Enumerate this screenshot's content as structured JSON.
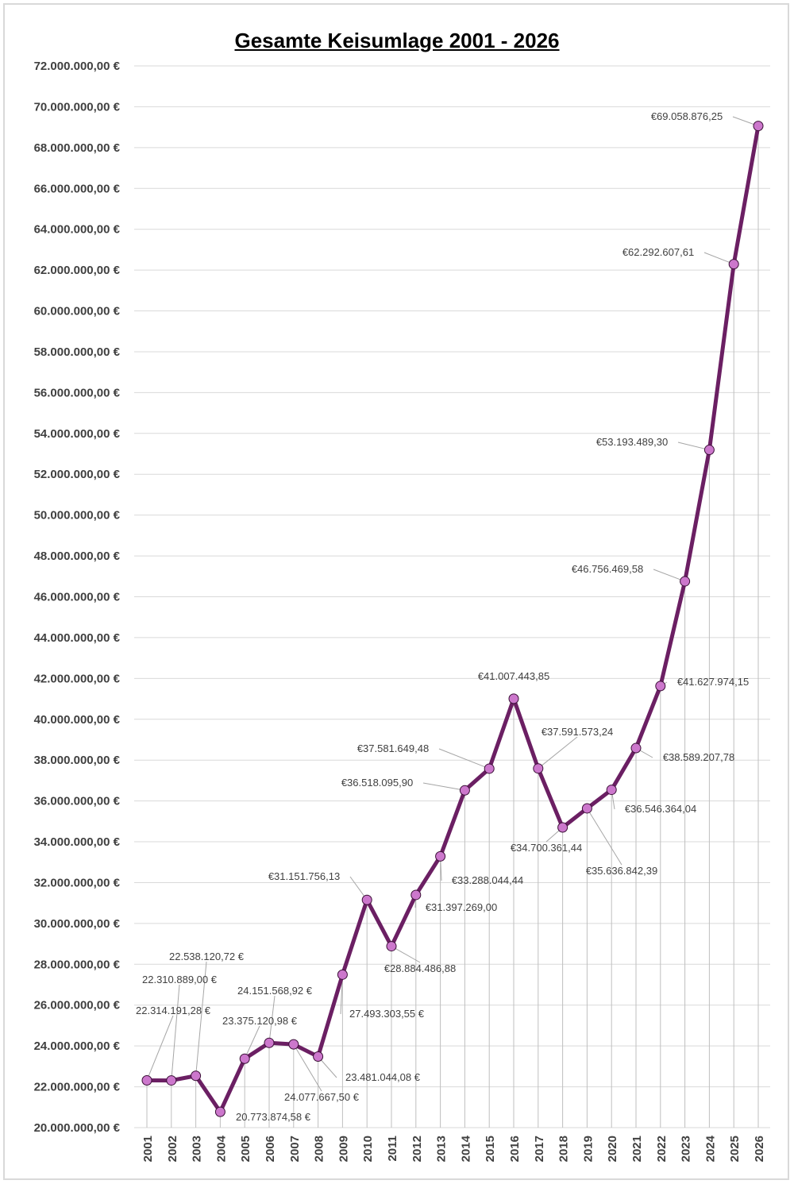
{
  "chart_data": {
    "type": "line",
    "title": "Gesamte Keisumlage 2001 - 2026",
    "xlabel": "",
    "ylabel": "",
    "ylim": [
      20000000,
      72000000
    ],
    "grid": true,
    "legend": "none",
    "line_color": "#6b1f63",
    "marker_color": "#cc77cc",
    "yticks": [
      "20.000.000,00 €",
      "22.000.000,00 €",
      "24.000.000,00 €",
      "26.000.000,00 €",
      "28.000.000,00 €",
      "30.000.000,00 €",
      "32.000.000,00 €",
      "34.000.000,00 €",
      "36.000.000,00 €",
      "38.000.000,00 €",
      "40.000.000,00 €",
      "42.000.000,00 €",
      "44.000.000,00 €",
      "46.000.000,00 €",
      "48.000.000,00 €",
      "50.000.000,00 €",
      "52.000.000,00 €",
      "54.000.000,00 €",
      "56.000.000,00 €",
      "58.000.000,00 €",
      "60.000.000,00 €",
      "62.000.000,00 €",
      "64.000.000,00 €",
      "66.000.000,00 €",
      "68.000.000,00 €",
      "70.000.000,00 €",
      "72.000.000,00 €"
    ],
    "categories": [
      "2001",
      "2002",
      "2003",
      "2004",
      "2005",
      "2006",
      "2007",
      "2008",
      "2009",
      "2010",
      "2011",
      "2012",
      "2013",
      "2014",
      "2015",
      "2016",
      "2017",
      "2018",
      "2019",
      "2020",
      "2021",
      "2022",
      "2023",
      "2024",
      "2025",
      "2026"
    ],
    "values": [
      22314191.28,
      22310889.0,
      22538120.72,
      20773874.58,
      23375120.98,
      24151568.92,
      24077667.5,
      23481044.08,
      27493303.55,
      31151756.13,
      28884486.88,
      31397269.0,
      33288044.44,
      36518095.9,
      37581649.48,
      41007443.85,
      37591573.24,
      34700361.44,
      35636842.39,
      36546364.04,
      38589207.78,
      41627974.15,
      46756469.58,
      53193489.3,
      62292607.61,
      69058876.25
    ],
    "data_labels": [
      "22.314.191,28 €",
      "22.310.889,00 €",
      "22.538.120,72 €",
      "20.773.874,58 €",
      "23.375.120,98 €",
      "24.151.568,92 €",
      "24.077.667,50 €",
      "23.481.044,08 €",
      "27.493.303,55 €",
      "€31.151.756,13",
      "€28.884.486,88",
      "€31.397.269,00",
      "€33.288.044,44",
      "€36.518.095,90",
      "€37.581.649,48",
      "€41.007.443,85",
      "€37.591.573,24",
      "€34.700.361,44",
      "€35.636.842,39",
      "€36.546.364,04",
      "€38.589.207,78",
      "€41.627.974,15",
      "€46.756.469,58",
      "€53.193.489,30",
      "€62.292.607,61",
      "€69.058.876,25"
    ]
  }
}
